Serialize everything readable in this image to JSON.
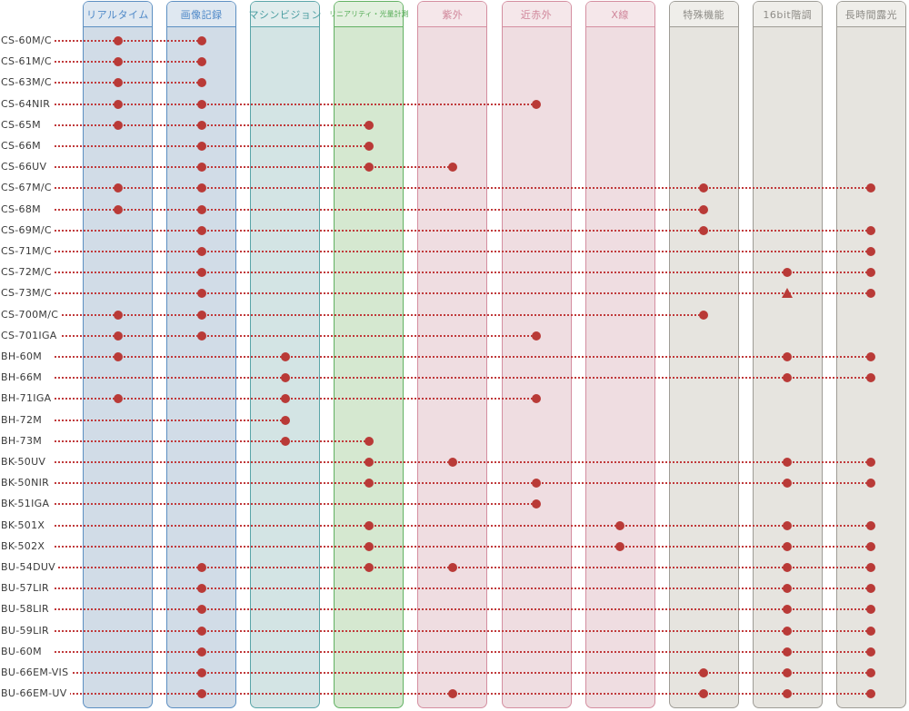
{
  "columns": [
    {
      "label": "リアルタイム",
      "bg": "#d1dce7",
      "border": "#5c8fc2",
      "header_bg": "#dfe8f1",
      "text": "#4f89c8"
    },
    {
      "label": "画像記録",
      "bg": "#d1dce7",
      "border": "#5c8fc2",
      "header_bg": "#dfe8f1",
      "text": "#4f89c8"
    },
    {
      "label": "マシンビジョン",
      "bg": "#d3e4e4",
      "border": "#5aa5a8",
      "header_bg": "#e1eded",
      "text": "#4a9da1"
    },
    {
      "label": "リニアリティ・光量計測",
      "bg": "#d5e8d0",
      "border": "#62b163",
      "header_bg": "#e3f0df",
      "text": "#58ad59",
      "small": true
    },
    {
      "label": "紫外",
      "bg": "#efdde1",
      "border": "#d48ea0",
      "header_bg": "#f5e7ea",
      "text": "#d0869a"
    },
    {
      "label": "近赤外",
      "bg": "#efdde1",
      "border": "#d48ea0",
      "header_bg": "#f5e7ea",
      "text": "#d0869a"
    },
    {
      "label": "X線",
      "bg": "#efdde1",
      "border": "#d48ea0",
      "header_bg": "#f5e7ea",
      "text": "#d0869a"
    },
    {
      "label": "特殊機能",
      "bg": "#e6e4df",
      "border": "#9e9c96",
      "header_bg": "#efeeea",
      "text": "#8e8c87"
    },
    {
      "label": "16bit階調",
      "bg": "#e6e4df",
      "border": "#9e9c96",
      "header_bg": "#efeeea",
      "text": "#8e8c87"
    },
    {
      "label": "長時間露光",
      "bg": "#e6e4df",
      "border": "#9e9c96",
      "header_bg": "#efeeea",
      "text": "#8e8c87"
    }
  ],
  "rows": [
    {
      "model": "CS-60M/C",
      "marks": [
        0,
        1
      ]
    },
    {
      "model": "CS-61M/C",
      "marks": [
        0,
        1
      ]
    },
    {
      "model": "CS-63M/C",
      "marks": [
        0,
        1
      ]
    },
    {
      "model": "CS-64NIR",
      "marks": [
        0,
        1,
        5
      ]
    },
    {
      "model": "CS-65M",
      "marks": [
        0,
        1,
        3
      ]
    },
    {
      "model": "CS-66M",
      "marks": [
        1,
        3
      ]
    },
    {
      "model": "CS-66UV",
      "marks": [
        1,
        3,
        4
      ]
    },
    {
      "model": "CS-67M/C",
      "marks": [
        0,
        1,
        7,
        9
      ]
    },
    {
      "model": "CS-68M",
      "marks": [
        0,
        1,
        7
      ]
    },
    {
      "model": "CS-69M/C",
      "marks": [
        1,
        7,
        9
      ]
    },
    {
      "model": "CS-71M/C",
      "marks": [
        1,
        9
      ]
    },
    {
      "model": "CS-72M/C",
      "marks": [
        1,
        8,
        9
      ]
    },
    {
      "model": "CS-73M/C",
      "marks": [
        1,
        9
      ],
      "triangles": [
        8
      ]
    },
    {
      "model": "CS-700M/C",
      "marks": [
        0,
        1,
        7
      ]
    },
    {
      "model": "CS-701IGA",
      "marks": [
        0,
        1,
        5
      ]
    },
    {
      "model": "BH-60M",
      "marks": [
        0,
        2,
        8,
        9
      ]
    },
    {
      "model": "BH-66M",
      "marks": [
        2,
        8,
        9
      ]
    },
    {
      "model": "BH-71IGA",
      "marks": [
        0,
        2,
        5
      ]
    },
    {
      "model": "BH-72M",
      "marks": [
        2
      ]
    },
    {
      "model": "BH-73M",
      "marks": [
        2,
        3
      ]
    },
    {
      "model": "BK-50UV",
      "marks": [
        3,
        4,
        8,
        9
      ]
    },
    {
      "model": "BK-50NIR",
      "marks": [
        3,
        5,
        8,
        9
      ]
    },
    {
      "model": "BK-51IGA",
      "marks": [
        5
      ]
    },
    {
      "model": "BK-501X",
      "marks": [
        3,
        6,
        8,
        9
      ]
    },
    {
      "model": "BK-502X",
      "marks": [
        3,
        6,
        8,
        9
      ]
    },
    {
      "model": "BU-54DUV",
      "marks": [
        1,
        3,
        4,
        8,
        9
      ]
    },
    {
      "model": "BU-57LIR",
      "marks": [
        1,
        8,
        9
      ]
    },
    {
      "model": "BU-58LIR",
      "marks": [
        1,
        8,
        9
      ]
    },
    {
      "model": "BU-59LIR",
      "marks": [
        1,
        8,
        9
      ]
    },
    {
      "model": "BU-60M",
      "marks": [
        1,
        8,
        9
      ]
    },
    {
      "model": "BU-66EM-VIS",
      "marks": [
        1,
        7,
        8,
        9
      ]
    },
    {
      "model": "BU-66EM-UV",
      "marks": [
        1,
        4,
        7,
        8,
        9
      ]
    }
  ],
  "colors": {
    "mark": "#b93a37",
    "line": "#c0393a",
    "label": "#3a3a3a"
  }
}
